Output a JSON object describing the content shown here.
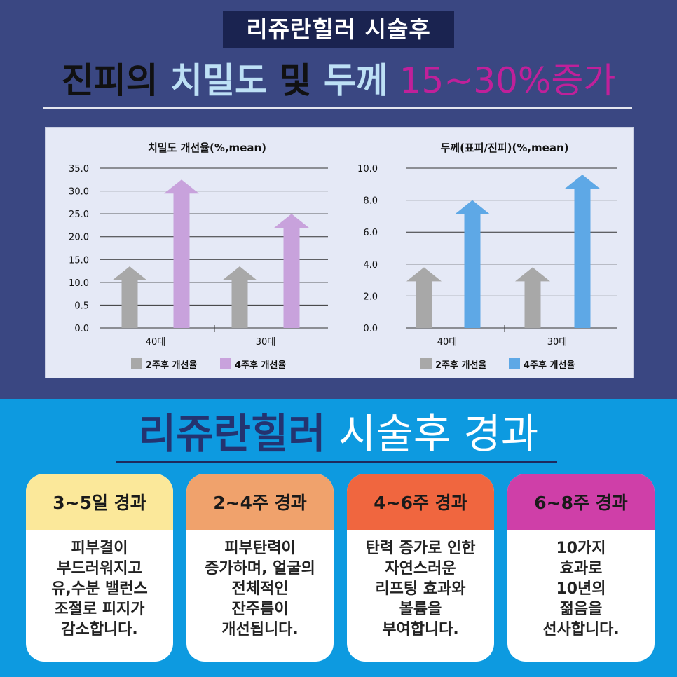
{
  "header": {
    "badge": "리쥬란힐러 시술후",
    "headline": {
      "part1": "진피의 ",
      "part2": "치밀도",
      "part3": " 및 ",
      "part4": "두께",
      "part5": " 15~30%증가"
    }
  },
  "colors": {
    "top_background": "#3a4782",
    "bottom_background": "#0d9ae0",
    "gray_arrow": "#a8a8a8",
    "purple_arrow": "#c8a2dc",
    "blue_arrow": "#5ea8e6",
    "highlight_magenta": "#c0209a"
  },
  "chart_data": [
    {
      "type": "bar",
      "style": "arrow",
      "title": "치밀도 개선율(%,mean)",
      "categories": [
        "40대",
        "30대"
      ],
      "series": [
        {
          "name": "2주후 개선율",
          "values": [
            13.5,
            13.5
          ],
          "color": "#a8a8a8"
        },
        {
          "name": "4주후 개선율",
          "values": [
            32.5,
            25.0
          ],
          "color": "#c8a2dc"
        }
      ],
      "yticks": [
        "0.0",
        "0.5",
        "10.0",
        "15.0",
        "20.0",
        "25.0",
        "30.0",
        "35.0"
      ],
      "ylim": [
        0,
        35
      ],
      "grid": true,
      "legend": "bottom"
    },
    {
      "type": "bar",
      "style": "arrow",
      "title": "두께(표피/진피)(%,mean)",
      "categories": [
        "40대",
        "30대"
      ],
      "series": [
        {
          "name": "2주후 개선율",
          "values": [
            3.8,
            3.8
          ],
          "color": "#a8a8a8"
        },
        {
          "name": "4주후 개선율",
          "values": [
            8.0,
            9.6
          ],
          "color": "#5ea8e6"
        }
      ],
      "yticks": [
        "0.0",
        "2.0",
        "4.0",
        "6.0",
        "8.0",
        "10.0"
      ],
      "ylim": [
        0,
        10
      ],
      "grid": true,
      "legend": "bottom"
    }
  ],
  "section2": {
    "title_bold": "리쥬란힐러",
    "title_light": " 시술후 경과"
  },
  "cards": [
    {
      "title": "3~5일 경과",
      "color": "#fbe89a",
      "lines": [
        "피부결이",
        "부드러워지고",
        "유,수분 밸런스",
        "조절로 피지가",
        "감소합니다."
      ]
    },
    {
      "title": "2~4주 경과",
      "color": "#f0a26c",
      "lines": [
        "피부탄력이",
        "증가하며, 얼굴의",
        "전체적인",
        "잔주름이",
        "개선됩니다."
      ]
    },
    {
      "title": "4~6주 경과",
      "color": "#f0663f",
      "lines": [
        "탄력 증가로 인한",
        "자연스러운",
        "리프팅 효과와",
        "볼륨을",
        "부여합니다."
      ]
    },
    {
      "title": "6~8주 경과",
      "color": "#cf3fa8",
      "lines": [
        "10가지",
        "효과로",
        "10년의",
        "젊음을",
        "선사합니다."
      ]
    }
  ]
}
